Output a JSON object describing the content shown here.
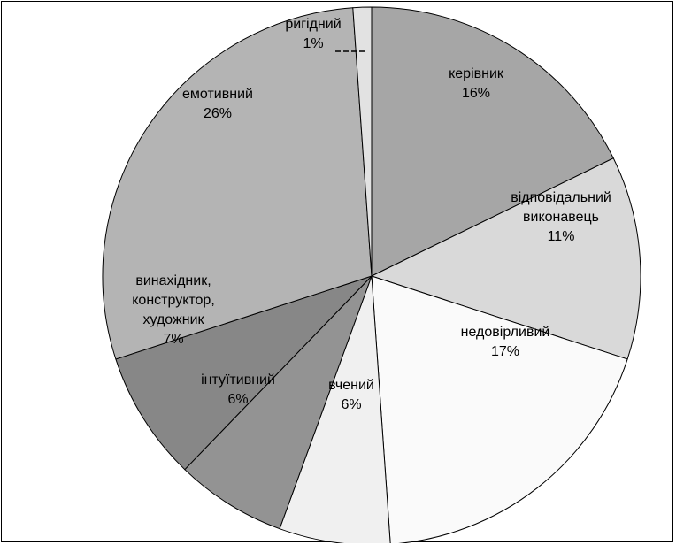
{
  "chart_data": {
    "type": "pie",
    "title": "",
    "slices": [
      {
        "label": [
          "керівник"
        ],
        "value_label": "16%",
        "value": 16,
        "color": "#a6a6a6"
      },
      {
        "label": [
          "відповідальний",
          "виконавець"
        ],
        "value_label": "11%",
        "value": 11,
        "color": "#d9d9d9"
      },
      {
        "label": [
          "недовірливий"
        ],
        "value_label": "17%",
        "value": 17,
        "color": "#fafafa"
      },
      {
        "label": [
          "вчений"
        ],
        "value_label": "6%",
        "value": 6,
        "color": "#f0f0f0"
      },
      {
        "label": [
          "інтуїтивний"
        ],
        "value_label": "6%",
        "value": 6,
        "color": "#939393"
      },
      {
        "label": [
          "винахідник,",
          "конструктор,",
          "художник"
        ],
        "value_label": "7%",
        "value": 7,
        "color": "#878787"
      },
      {
        "label": [
          "емотивний"
        ],
        "value_label": "26%",
        "value": 26,
        "color": "#b4b4b4"
      },
      {
        "label": [
          "ригідний"
        ],
        "value_label": "1%",
        "value": 1,
        "color": "#e2e2e2"
      }
    ]
  }
}
